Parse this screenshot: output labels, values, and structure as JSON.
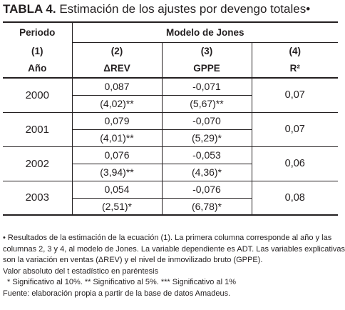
{
  "title": {
    "prefix": "TABLA 4.",
    "text": "Estimación de los ajustes por devengo totales",
    "marker": "•"
  },
  "table": {
    "header_periodo": "Periodo",
    "header_modelo": "Modelo de Jones",
    "col_numbers": [
      "(1)",
      "(2)",
      "(3)",
      "(4)"
    ],
    "col_labels": [
      "Año",
      "ΔREV",
      "GPPE",
      "R²"
    ],
    "rows": [
      {
        "year": "2000",
        "rev": "0,087",
        "rev_t": "(4,02)**",
        "gppe": "-0,071",
        "gppe_t": "(5,67)**",
        "r2": "0,07"
      },
      {
        "year": "2001",
        "rev": "0,079",
        "rev_t": "(4,01)**",
        "gppe": "-0,070",
        "gppe_t": "(5,29)*",
        "r2": "0,07"
      },
      {
        "year": "2002",
        "rev": "0,076",
        "rev_t": "(3,94)**",
        "gppe": "-0,053",
        "gppe_t": "(4,36)*",
        "r2": "0,06"
      },
      {
        "year": "2003",
        "rev": "0,054",
        "rev_t": "(2,51)*",
        "gppe": "-0,076",
        "gppe_t": "(6,78)*",
        "r2": "0,08"
      }
    ]
  },
  "notes": {
    "line1": "•  Resultados de la estimación de la ecuación (1). La primera columna corresponde al año y las",
    "line2": "columnas 2, 3 y 4, al modelo de Jones. La variable dependiente es ADT. Las variables explicativas",
    "line3": "son la variación en ventas (ΔREV) y el nivel de inmovilizado bruto (GPPE).",
    "line4": "Valor absoluto del  t estadístico en paréntesis",
    "line5": "* Significativo al 10%.  ** Significativo al 5%. *** Significativo al 1%",
    "line6": "Fuente: elaboración propia a partir de la base de datos Amadeus."
  }
}
